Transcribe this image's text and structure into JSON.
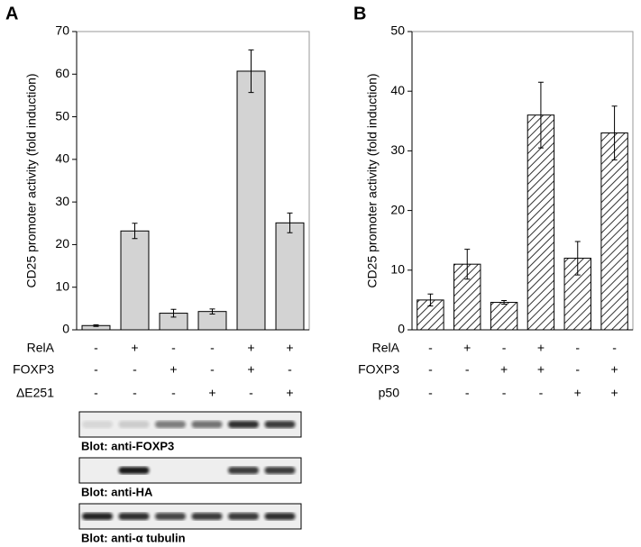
{
  "chart_data": [
    {
      "type": "bar",
      "title": "A",
      "y_label": "CD25 promoter activity (fold induction)",
      "values": [
        1,
        23.2,
        3.9,
        4.3,
        60.7,
        25.1
      ],
      "errors": [
        0.2,
        1.8,
        0.9,
        0.6,
        5,
        2.3
      ],
      "color": "#d3d3d3",
      "ylim": [
        0,
        70
      ],
      "yticks": [
        0,
        10,
        20,
        30,
        40,
        50,
        60,
        70
      ],
      "conditions": [
        {
          "name": "RelA",
          "values": [
            "-",
            "+",
            "-",
            "-",
            "+",
            "+"
          ]
        },
        {
          "name": "FOXP3",
          "values": [
            "-",
            "-",
            "+",
            "-",
            "+",
            "-"
          ]
        },
        {
          "name": "ΔE251",
          "values": [
            "-",
            "-",
            "-",
            "+",
            "-",
            "+"
          ]
        }
      ],
      "blots": [
        "Blot: anti-FOXP3",
        "Blot: anti-HA",
        "Blot: anti-α tubulin"
      ]
    },
    {
      "type": "bar",
      "title": "B",
      "y_label": "CD25 promoter activity (fold induction)",
      "values": [
        5,
        11,
        4.6,
        36,
        12,
        33
      ],
      "errors": [
        1,
        2.5,
        0.3,
        5.5,
        2.8,
        4.5
      ],
      "color": "hatch",
      "ylim": [
        0,
        50
      ],
      "yticks": [
        0,
        10,
        20,
        30,
        40,
        50
      ],
      "conditions": [
        {
          "name": "RelA",
          "values": [
            "-",
            "+",
            "-",
            "+",
            "-",
            "-"
          ]
        },
        {
          "name": "FOXP3",
          "values": [
            "-",
            "-",
            "+",
            "+",
            "-",
            "+"
          ]
        },
        {
          "name": "p50",
          "values": [
            "-",
            "-",
            "-",
            "-",
            "+",
            "+"
          ]
        }
      ]
    }
  ]
}
